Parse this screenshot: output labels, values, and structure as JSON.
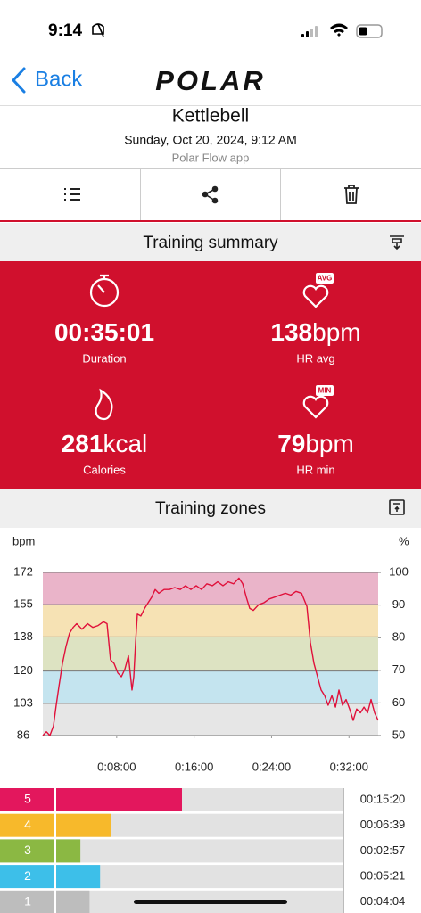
{
  "status": {
    "time": "9:14"
  },
  "nav": {
    "back": "Back",
    "logo": "POLAR"
  },
  "header": {
    "title": "Kettlebell",
    "date": "Sunday, Oct 20, 2024, 9:12 AM",
    "source": "Polar Flow app"
  },
  "summary": {
    "title": "Training summary",
    "metrics": [
      {
        "value": "00:35:01",
        "label": "Duration"
      },
      {
        "value": "138",
        "unit": "bpm",
        "label": "HR avg",
        "badge": "AVG"
      },
      {
        "value": "281",
        "unit": "kcal",
        "label": "Calories"
      },
      {
        "value": "79",
        "unit": "bpm",
        "label": "HR min",
        "badge": "MIN"
      }
    ]
  },
  "zones": {
    "title": "Training zones",
    "rows": [
      {
        "zone": "5",
        "time": "00:15:20",
        "color": "#e3175d"
      },
      {
        "zone": "4",
        "time": "00:06:39",
        "color": "#f7b92b"
      },
      {
        "zone": "3",
        "time": "00:02:57",
        "color": "#8bb843"
      },
      {
        "zone": "2",
        "time": "00:05:21",
        "color": "#3dbfe9"
      },
      {
        "zone": "1",
        "time": "00:04:04",
        "color": "#bdbdbd"
      }
    ]
  },
  "chart_data": {
    "type": "line",
    "y_label": "bpm",
    "y2_label": "%",
    "color": "#e0103a",
    "zone_colors": [
      "#e6e6e6",
      "#c4e4ef",
      "#dde3c2",
      "#f6e2b4",
      "#eab4c9"
    ],
    "xlim": [
      0,
      2101
    ],
    "xticks": [
      {
        "value": 480,
        "label": "0:08:00"
      },
      {
        "value": 960,
        "label": "0:16:00"
      },
      {
        "value": 1440,
        "label": "0:24:00"
      },
      {
        "value": 1920,
        "label": "0:32:00"
      }
    ],
    "ylim": [
      86,
      172
    ],
    "yticks": [
      86,
      103,
      120,
      138,
      155,
      172
    ],
    "y2lim": [
      50,
      100
    ],
    "y2ticks": [
      50,
      60,
      70,
      80,
      90,
      100
    ],
    "x": [
      22,
      44,
      66,
      88,
      105,
      122,
      144,
      166,
      188,
      210,
      232,
      265,
      299,
      332,
      365,
      398,
      420,
      442,
      464,
      487,
      509,
      531,
      553,
      575,
      586,
      597,
      608,
      630,
      653,
      675,
      697,
      719,
      741,
      774,
      807,
      840,
      874,
      907,
      940,
      973,
      1006,
      1039,
      1073,
      1106,
      1139,
      1172,
      1205,
      1238,
      1261,
      1283,
      1305,
      1327,
      1360,
      1393,
      1426,
      1460,
      1493,
      1526,
      1559,
      1592,
      1626,
      1659,
      1681,
      1703,
      1725,
      1747,
      1769,
      1791,
      1814,
      1836,
      1858,
      1880,
      1902,
      1924,
      1946,
      1968,
      1991,
      2013,
      2035,
      2057,
      2079,
      2101
    ],
    "values": [
      86,
      88,
      86,
      91,
      102,
      112,
      124,
      133,
      140,
      143,
      145,
      142,
      145,
      143,
      144,
      146,
      145,
      126,
      124,
      119,
      117,
      121,
      128,
      110,
      117,
      135,
      150,
      149,
      153,
      156,
      159,
      163,
      161,
      163,
      163,
      164,
      163,
      165,
      163,
      165,
      163,
      166,
      165,
      167,
      165,
      167,
      166,
      169,
      166,
      159,
      153,
      152,
      155,
      156,
      158,
      159,
      160,
      161,
      160,
      162,
      161,
      154,
      135,
      124,
      117,
      110,
      107,
      102,
      107,
      101,
      110,
      102,
      105,
      100,
      94,
      100,
      98,
      101,
      98,
      105,
      98,
      94
    ]
  }
}
